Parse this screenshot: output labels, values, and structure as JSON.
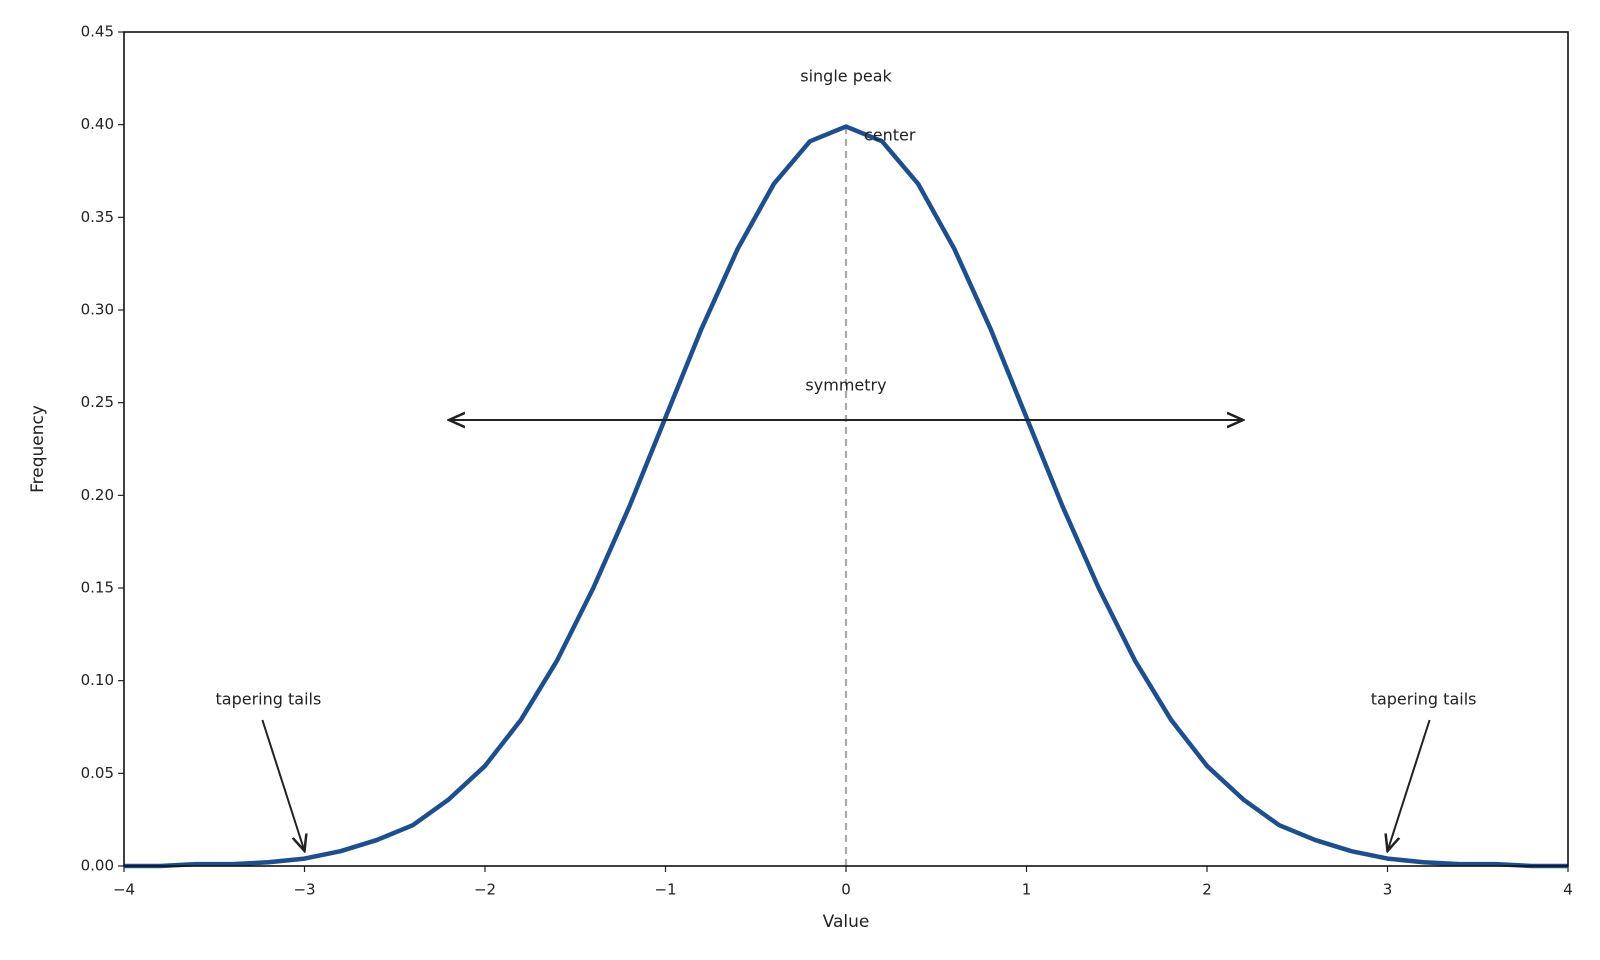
{
  "chart_data": {
    "type": "line",
    "xlabel": "Value",
    "ylabel": "Frequency",
    "x": [
      -4,
      -3.8,
      -3.6,
      -3.4,
      -3.2,
      -3,
      -2.8,
      -2.6,
      -2.4,
      -2.2,
      -2,
      -1.8,
      -1.6,
      -1.4,
      -1.2,
      -1,
      -0.8,
      -0.6,
      -0.4,
      -0.2,
      0,
      0.2,
      0.4,
      0.6,
      0.8,
      1,
      1.2,
      1.4,
      1.6,
      1.8,
      2,
      2.2,
      2.4,
      2.6,
      2.8,
      3,
      3.2,
      3.4,
      3.6,
      3.8,
      4
    ],
    "series": [
      {
        "color": "#1f4e8c",
        "values": [
          0.0,
          0.0,
          0.001,
          0.001,
          0.002,
          0.004,
          0.008,
          0.014,
          0.022,
          0.036,
          0.054,
          0.079,
          0.111,
          0.15,
          0.194,
          0.242,
          0.29,
          0.333,
          0.368,
          0.391,
          0.399,
          0.391,
          0.368,
          0.333,
          0.29,
          0.242,
          0.194,
          0.15,
          0.111,
          0.079,
          0.054,
          0.036,
          0.022,
          0.014,
          0.008,
          0.004,
          0.002,
          0.001,
          0.001,
          0.0,
          0.0
        ]
      }
    ],
    "xlim": [
      -4,
      4
    ],
    "xticks": [
      {
        "value": -4,
        "label": "−4"
      },
      {
        "value": -3,
        "label": "−3"
      },
      {
        "value": -2,
        "label": "−2"
      },
      {
        "value": -1,
        "label": "−1"
      },
      0,
      1,
      2,
      3,
      4
    ],
    "ylim": [
      0,
      0.45
    ],
    "yticks": [
      {
        "value": 0,
        "label": "0.00"
      },
      0.05,
      {
        "value": 0.1,
        "label": "0.10"
      },
      0.15,
      {
        "value": 0.2,
        "label": "0.20"
      },
      0.25,
      {
        "value": 0.3,
        "label": "0.30"
      },
      0.35,
      {
        "value": 0.4,
        "label": "0.40"
      },
      0.45
    ],
    "annotations": [
      "single peak",
      "center",
      "symmetry",
      "tapering tails",
      "tapering tails"
    ]
  }
}
